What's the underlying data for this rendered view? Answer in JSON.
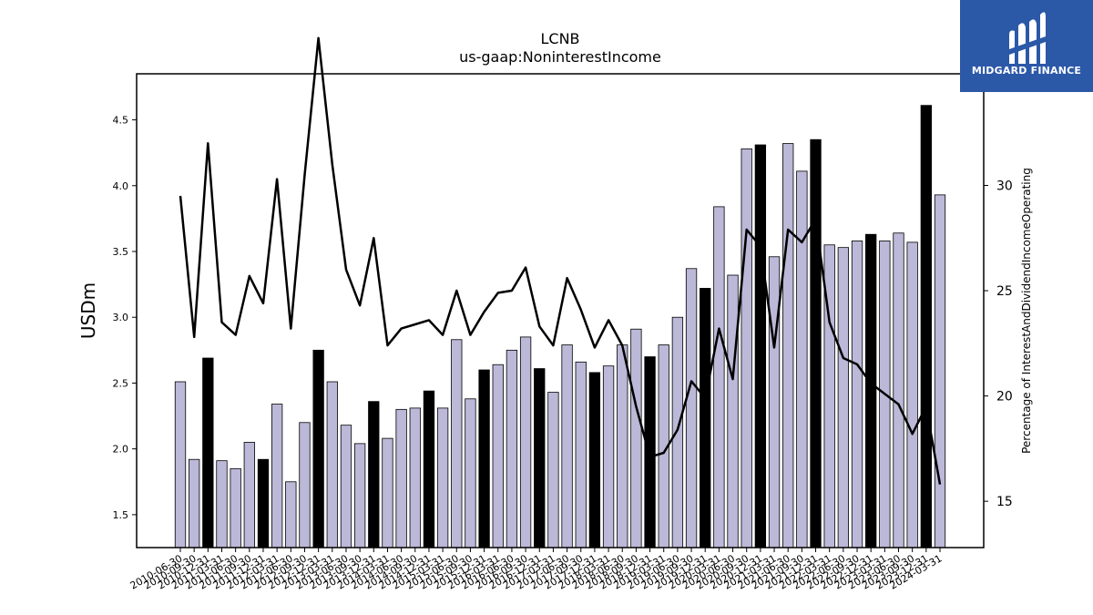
{
  "chart_data": {
    "type": "bar",
    "title": "LCNB",
    "subtitle": "us-gaap:NoninterestIncome",
    "ylabel": "USDm",
    "y2label": "Percentage of InterestAndDividendIncomeOperating",
    "ylim": [
      1.25,
      4.85
    ],
    "y2lim": [
      12.8,
      35.3
    ],
    "yticks": [
      "1.5",
      "2.0",
      "2.5",
      "3.0",
      "3.5",
      "4.0",
      "4.5"
    ],
    "y2ticks": [
      "15",
      "20",
      "25",
      "30"
    ],
    "grid": false,
    "categories": [
      "2010-06-30",
      "2010-09-30",
      "2010-12-31",
      "2011-03-31",
      "2011-06-30",
      "2011-09-30",
      "2011-12-31",
      "2012-03-31",
      "2012-06-30",
      "2012-09-30",
      "2012-12-31",
      "2013-03-31",
      "2013-06-30",
      "2013-09-30",
      "2013-12-31",
      "2014-03-31",
      "2014-06-30",
      "2014-09-30",
      "2014-12-31",
      "2015-03-31",
      "2015-06-30",
      "2015-09-30",
      "2015-12-31",
      "2016-03-31",
      "2016-06-30",
      "2016-09-30",
      "2016-12-31",
      "2017-03-31",
      "2017-06-30",
      "2017-09-30",
      "2017-12-31",
      "2018-03-31",
      "2018-06-30",
      "2018-09-30",
      "2018-12-31",
      "2019-03-31",
      "2019-06-30",
      "2019-09-30",
      "2019-12-31",
      "2020-03-31",
      "2020-06-30",
      "2020-09-30",
      "2020-12-31",
      "2021-03-31",
      "2021-06-30",
      "2021-09-30",
      "2021-12-31",
      "2022-03-31",
      "2022-06-30",
      "2022-09-30",
      "2022-12-31",
      "2023-03-31",
      "2023-06-30",
      "2023-09-30",
      "2023-12-31",
      "2024-03-31"
    ],
    "series": [
      {
        "kind": "bar",
        "values": [
          2.51,
          1.92,
          2.69,
          1.91,
          1.85,
          2.05,
          1.92,
          2.34,
          1.75,
          2.2,
          2.75,
          2.51,
          2.18,
          2.04,
          2.36,
          2.08,
          2.3,
          2.31,
          2.44,
          2.31,
          2.83,
          2.38,
          2.6,
          2.64,
          2.75,
          2.85,
          2.61,
          2.43,
          2.79,
          2.66,
          2.58,
          2.63,
          2.79,
          2.91,
          2.7,
          2.79,
          3.0,
          3.37,
          3.22,
          3.84,
          3.32,
          4.28,
          4.31,
          3.46,
          4.32,
          4.11,
          4.35,
          3.55,
          3.53,
          3.58,
          3.63,
          3.58,
          3.64,
          3.57,
          4.61,
          3.93
        ],
        "color": "#bcb8d8",
        "year_end_color": "#000000"
      },
      {
        "kind": "line",
        "axis": "right",
        "values": [
          29.5,
          22.8,
          32.0,
          23.5,
          22.9,
          25.7,
          24.4,
          30.3,
          23.2,
          30.5,
          37.0,
          31.0,
          26.0,
          24.3,
          27.5,
          22.4,
          23.2,
          23.4,
          23.6,
          22.9,
          25.0,
          22.9,
          24.0,
          24.9,
          25.0,
          26.1,
          23.3,
          22.4,
          25.6,
          24.1,
          22.3,
          23.6,
          22.4,
          19.5,
          17.1,
          17.3,
          18.4,
          20.7,
          19.9,
          23.2,
          20.8,
          27.9,
          27.1,
          22.3,
          27.9,
          27.3,
          28.4,
          23.5,
          21.8,
          21.5,
          20.6,
          20.1,
          19.6,
          18.2,
          19.5,
          15.8
        ],
        "color": "#000000"
      }
    ]
  },
  "logo": {
    "text": "MIDGARD FINANCE",
    "color": "#2c58a8"
  }
}
